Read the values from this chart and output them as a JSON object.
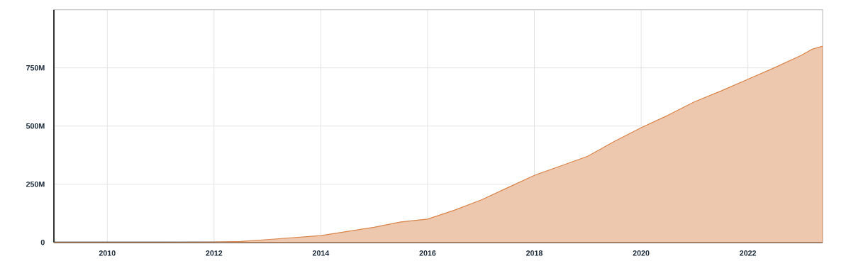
{
  "chart_data": {
    "type": "area",
    "x": [
      2009.0,
      2011.0,
      2012.0,
      2012.5,
      2013.0,
      2014.0,
      2015.0,
      2015.5,
      2016.0,
      2016.5,
      2017.0,
      2017.5,
      2018.0,
      2018.5,
      2019.0,
      2019.5,
      2020.0,
      2020.5,
      2021.0,
      2021.5,
      2022.0,
      2022.5,
      2023.0,
      2023.2,
      2023.4
    ],
    "values": [
      0,
      0,
      1,
      4,
      12,
      29,
      65,
      88,
      100,
      138,
      182,
      235,
      288,
      329,
      370,
      434,
      493,
      546,
      604,
      651,
      701,
      751,
      804,
      830,
      843
    ],
    "color": "#d9844a",
    "xlim": [
      2009.0,
      2023.4
    ],
    "ylim": [
      0,
      1000
    ],
    "xticks": [
      2010,
      2012,
      2014,
      2016,
      2018,
      2020,
      2022
    ],
    "yticks": [
      0,
      {
        "value": 250,
        "label": "250M"
      },
      {
        "value": 500,
        "label": "500M"
      },
      {
        "value": 750,
        "label": "750M"
      }
    ],
    "grid": true
  }
}
